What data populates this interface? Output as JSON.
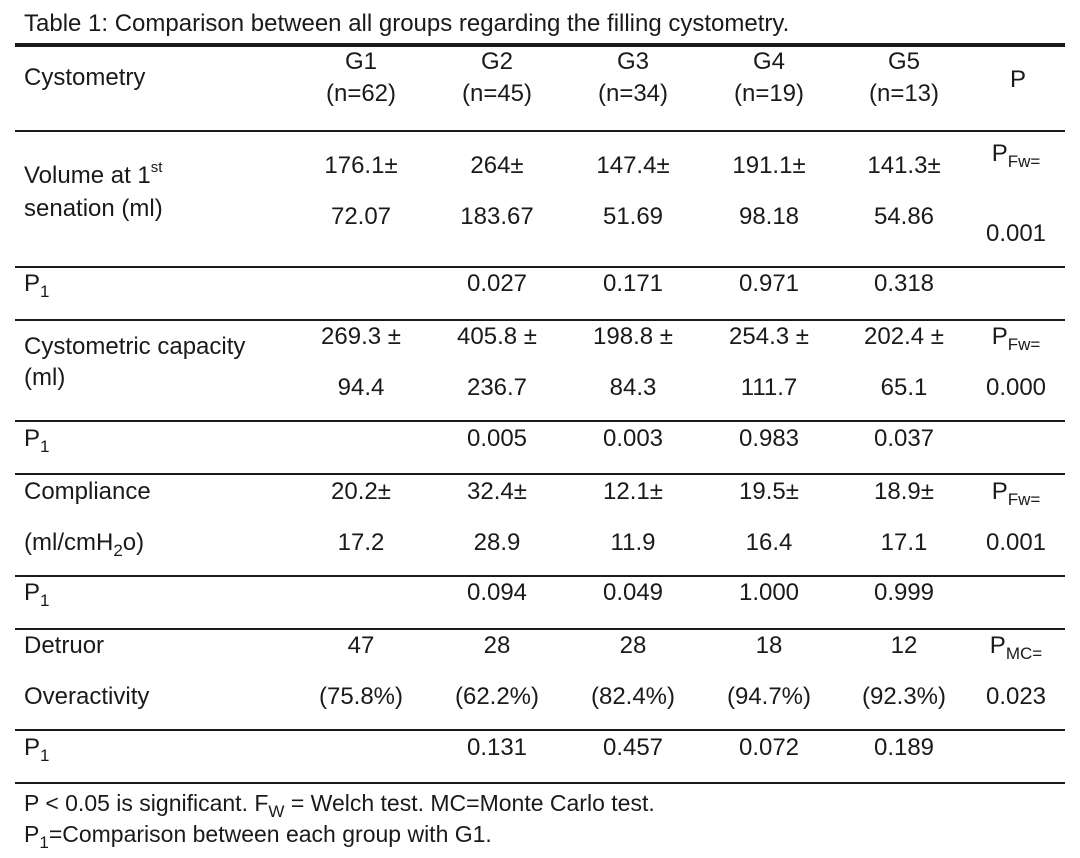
{
  "caption": "Table 1: Comparison between all groups regarding the filling cystometry.",
  "header": {
    "first": "Cystometry",
    "groups": [
      {
        "name": "G1",
        "n": "(n=62)"
      },
      {
        "name": "G2",
        "n": "(n=45)"
      },
      {
        "name": "G3",
        "n": "(n=34)"
      },
      {
        "name": "G4",
        "n": "(n=19)"
      },
      {
        "name": "G5",
        "n": "(n=13)"
      }
    ],
    "p": "P"
  },
  "rows": {
    "volume": {
      "label1": "Volume at 1",
      "label1_sup": "st",
      "label2": "senation (ml)",
      "top": [
        "176.1±",
        "264±",
        "147.4±",
        "191.1±",
        "141.3±"
      ],
      "bottom": [
        "72.07",
        "183.67",
        "51.69",
        "98.18",
        "54.86"
      ],
      "p_main": "P",
      "p_sub": "Fw=",
      "p_value": "0.001"
    },
    "volume_p1": {
      "label": "P",
      "label_sub": "1",
      "values": [
        "",
        "0.027",
        "0.171",
        "0.971",
        "0.318"
      ]
    },
    "capacity": {
      "label1": "Cystometric capacity",
      "label2": "(ml)",
      "top": [
        "269.3 ±",
        "405.8 ±",
        "198.8 ±",
        "254.3 ±",
        "202.4 ±"
      ],
      "bottom": [
        "94.4",
        "236.7",
        "84.3",
        "111.7",
        "65.1"
      ],
      "p_main": "P",
      "p_sub": "Fw=",
      "p_value": "0.000"
    },
    "capacity_p1": {
      "label": "P",
      "label_sub": "1",
      "values": [
        "",
        "0.005",
        "0.003",
        "0.983",
        "0.037"
      ]
    },
    "compliance": {
      "label1": "Compliance",
      "label2_a": "(ml/cmH",
      "label2_sub": "2",
      "label2_b": "o)",
      "top": [
        "20.2±",
        "32.4±",
        "12.1±",
        "19.5±",
        "18.9±"
      ],
      "bottom": [
        "17.2",
        "28.9",
        "11.9",
        "16.4",
        "17.1"
      ],
      "p_main": "P",
      "p_sub": "Fw=",
      "p_value": "0.001"
    },
    "compliance_p1": {
      "label": "P",
      "label_sub": "1",
      "values": [
        "",
        "0.094",
        "0.049",
        "1.000",
        "0.999"
      ]
    },
    "detrusor": {
      "label1": "Detruor",
      "label2": "Overactivity",
      "top": [
        "47",
        "28",
        "28",
        "18",
        "12"
      ],
      "bottom": [
        "(75.8%)",
        "(62.2%)",
        "(82.4%)",
        "(94.7%)",
        "(92.3%)"
      ],
      "p_main": "P",
      "p_sub": "MC=",
      "p_value": "0.023"
    },
    "detrusor_p1": {
      "label": "P",
      "label_sub": "1",
      "values": [
        "",
        "0.131",
        "0.457",
        "0.072",
        "0.189"
      ]
    }
  },
  "footnotes": {
    "line1_a": "P < 0.05 is significant. F",
    "line1_sub": "W",
    "line1_b": " = Welch test.  MC=Monte Carlo test.",
    "line2_a": "P",
    "line2_sub": "1",
    "line2_b": "=Comparison between each group with G1."
  }
}
